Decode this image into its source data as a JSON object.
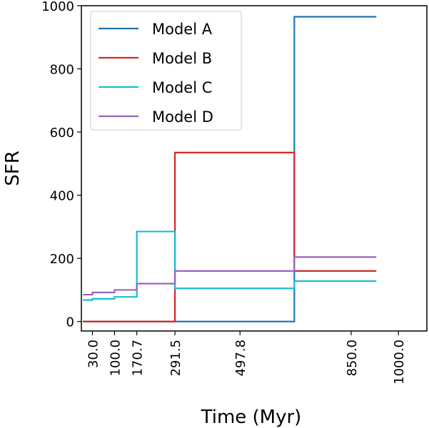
{
  "chart_data": {
    "type": "line",
    "step": "post",
    "xlabel": "Time (Myr)",
    "ylabel": "SFR",
    "xlim": [
      -5,
      1090
    ],
    "ylim": [
      -30,
      1000
    ],
    "x_ticks": [
      30.0,
      100.0,
      170.7,
      291.5,
      497.8,
      850.0,
      1000.0
    ],
    "x_tick_labels": [
      "30.0",
      "100.0",
      "170.7",
      "291.5",
      "497.8",
      "850.0",
      "1000.0"
    ],
    "y_ticks": [
      0,
      200,
      400,
      600,
      800,
      1000
    ],
    "y_tick_labels": [
      "0",
      "200",
      "400",
      "600",
      "800",
      "1000"
    ],
    "grid": false,
    "legend_position": "top-left",
    "series": [
      {
        "name": "Model A",
        "color": "#1f77b4",
        "x": [
          0,
          30,
          60,
          100,
          130,
          170.7,
          220,
          291.5,
          390,
          497.8,
          670,
          850,
          930
        ],
        "y": [
          0,
          0,
          0,
          0,
          0,
          0,
          0,
          0,
          0,
          0,
          965,
          965,
          965
        ]
      },
      {
        "name": "Model B",
        "color": "#d62728",
        "x": [
          0,
          30,
          60,
          100,
          130,
          170.7,
          220,
          291.5,
          390,
          497.8,
          670,
          850,
          930
        ],
        "y": [
          0,
          0,
          0,
          0,
          0,
          0,
          0,
          535,
          535,
          535,
          160,
          160,
          160
        ]
      },
      {
        "name": "Model C",
        "color": "#17becf",
        "x": [
          0,
          30,
          60,
          100,
          130,
          170.7,
          220,
          291.5,
          390,
          497.8,
          670,
          850,
          930
        ],
        "y": [
          68,
          72,
          72,
          78,
          78,
          285,
          285,
          105,
          105,
          105,
          128,
          128,
          128
        ]
      },
      {
        "name": "Model D",
        "color": "#9467bd",
        "x": [
          0,
          30,
          60,
          100,
          130,
          170.7,
          220,
          291.5,
          390,
          497.8,
          670,
          850,
          930
        ],
        "y": [
          85,
          92,
          92,
          100,
          100,
          120,
          120,
          160,
          160,
          160,
          204,
          204,
          204
        ]
      }
    ]
  }
}
